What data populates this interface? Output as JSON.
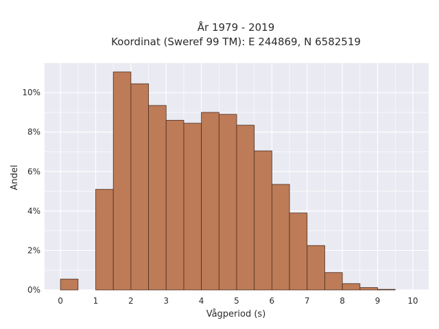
{
  "chart_data": {
    "type": "bar",
    "title_lines": [
      "År 1979 - 2019",
      "Koordinat (Sweref 99 TM): E 244869, N 6582519"
    ],
    "xlabel": "Vågperiod (s)",
    "ylabel": "Andel",
    "bin_width": 0.5,
    "bin_starts": [
      0,
      0.5,
      1,
      1.5,
      2,
      2.5,
      3,
      3.5,
      4,
      4.5,
      5,
      5.5,
      6,
      6.5,
      7,
      7.5,
      8,
      8.5,
      9,
      9.5
    ],
    "values": [
      0.55,
      0,
      5.1,
      11.05,
      10.45,
      9.35,
      8.6,
      8.45,
      9.0,
      8.9,
      8.35,
      7.05,
      5.35,
      3.9,
      2.25,
      0.88,
      0.32,
      0.12,
      0.03,
      0
    ],
    "xlim": [
      -0.45,
      10.45
    ],
    "ylim": [
      0,
      11.5
    ],
    "x_ticks": [
      0,
      1,
      2,
      3,
      4,
      5,
      6,
      7,
      8,
      9,
      10
    ],
    "x_tick_labels": [
      "0",
      "1",
      "2",
      "3",
      "4",
      "5",
      "6",
      "7",
      "8",
      "9",
      "10"
    ],
    "y_ticks": [
      0,
      2,
      4,
      6,
      8,
      10
    ],
    "y_tick_labels": [
      "0%",
      "2%",
      "4%",
      "6%",
      "8%",
      "10%"
    ],
    "grid": true,
    "colors": {
      "bar_fill": "#bd7b57",
      "bar_edge": "#4a2e1e",
      "plot_background": "#eaeaf2",
      "grid": "#ffffff"
    }
  }
}
